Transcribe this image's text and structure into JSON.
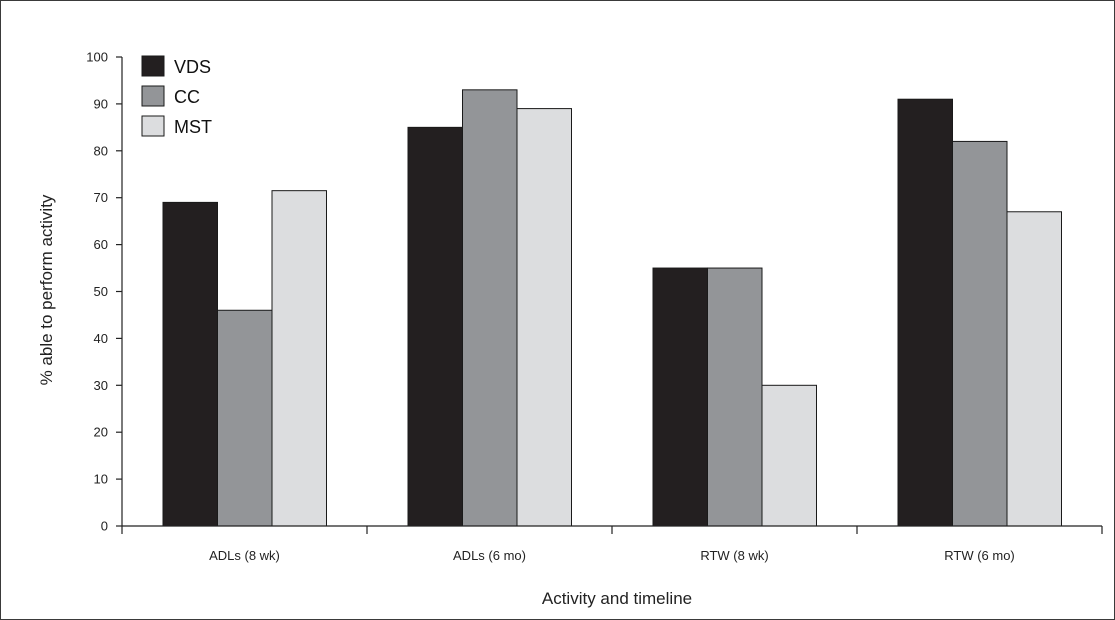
{
  "chart_data": {
    "type": "bar",
    "title": "",
    "xlabel": "Activity and timeline",
    "ylabel": "% able to perform activity",
    "ylim": [
      0,
      100
    ],
    "yticks": [
      0,
      10,
      20,
      30,
      40,
      50,
      60,
      70,
      80,
      90,
      100
    ],
    "categories": [
      "ADLs (8 wk)",
      "ADLs (6 mo)",
      "RTW (8 wk)",
      "RTW (6 mo)"
    ],
    "series": [
      {
        "name": "VDS",
        "color": "#231f20",
        "values": [
          69,
          85,
          55,
          91
        ]
      },
      {
        "name": "CC",
        "color": "#939598",
        "values": [
          46,
          93,
          55,
          82
        ]
      },
      {
        "name": "MST",
        "color": "#dcdddf",
        "values": [
          71.5,
          89,
          30,
          67
        ]
      }
    ],
    "legend_position": "top-left",
    "grid": false
  }
}
